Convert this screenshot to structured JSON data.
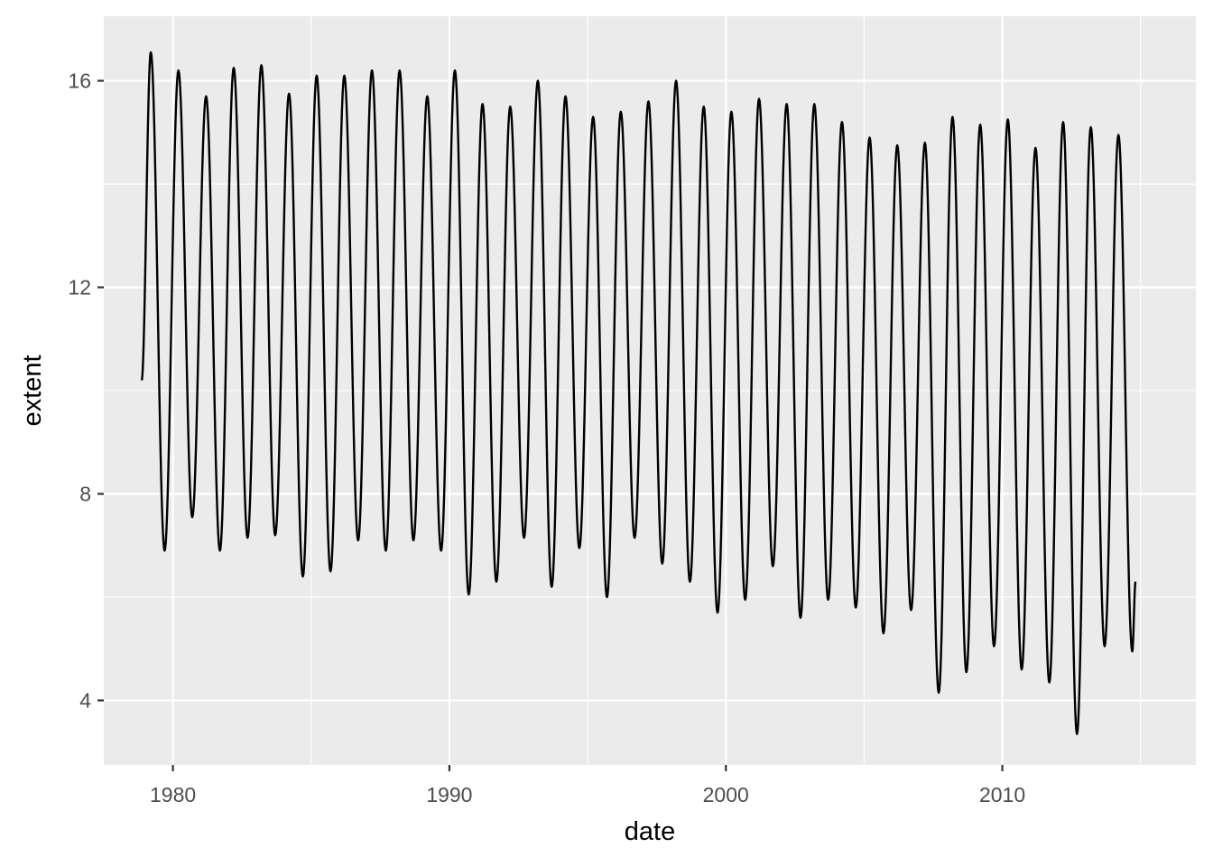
{
  "chart_data": {
    "type": "line",
    "title": "",
    "xlabel": "date",
    "ylabel": "extent",
    "xlim": [
      1977.5,
      2017.0
    ],
    "ylim": [
      2.75,
      17.25
    ],
    "x_ticks": [
      1980,
      1990,
      2000,
      2010
    ],
    "x_tick_labels": [
      "1980",
      "1990",
      "2000",
      "2010"
    ],
    "y_ticks": [
      4,
      8,
      12,
      16
    ],
    "y_tick_labels": [
      "4",
      "8",
      "12",
      "16"
    ],
    "grid": true,
    "legend": "none",
    "colors": {
      "panel": "#ebebeb",
      "grid": "#ffffff",
      "line": "#000000",
      "tick_text": "#4d4d4d"
    },
    "series": [
      {
        "values": [
          [
            1978.87,
            10.2
          ],
          [
            1979.2,
            16.55
          ],
          [
            1979.7,
            6.9
          ],
          [
            1980.2,
            16.2
          ],
          [
            1980.7,
            7.55
          ],
          [
            1981.2,
            15.7
          ],
          [
            1981.7,
            6.9
          ],
          [
            1982.2,
            16.25
          ],
          [
            1982.7,
            7.15
          ],
          [
            1983.2,
            16.3
          ],
          [
            1983.7,
            7.2
          ],
          [
            1984.2,
            15.75
          ],
          [
            1984.7,
            6.4
          ],
          [
            1985.2,
            16.1
          ],
          [
            1985.7,
            6.5
          ],
          [
            1986.2,
            16.1
          ],
          [
            1986.7,
            7.1
          ],
          [
            1987.2,
            16.2
          ],
          [
            1987.7,
            6.9
          ],
          [
            1988.2,
            16.2
          ],
          [
            1988.7,
            7.1
          ],
          [
            1989.2,
            15.7
          ],
          [
            1989.7,
            6.9
          ],
          [
            1990.2,
            16.2
          ],
          [
            1990.7,
            6.05
          ],
          [
            1991.2,
            15.55
          ],
          [
            1991.7,
            6.3
          ],
          [
            1992.2,
            15.5
          ],
          [
            1992.7,
            7.15
          ],
          [
            1993.2,
            16.0
          ],
          [
            1993.7,
            6.2
          ],
          [
            1994.2,
            15.7
          ],
          [
            1994.7,
            6.95
          ],
          [
            1995.2,
            15.3
          ],
          [
            1995.7,
            6.0
          ],
          [
            1996.2,
            15.4
          ],
          [
            1996.7,
            7.15
          ],
          [
            1997.2,
            15.6
          ],
          [
            1997.7,
            6.65
          ],
          [
            1998.2,
            16.0
          ],
          [
            1998.7,
            6.3
          ],
          [
            1999.2,
            15.5
          ],
          [
            1999.7,
            5.7
          ],
          [
            2000.2,
            15.4
          ],
          [
            2000.7,
            5.95
          ],
          [
            2001.2,
            15.65
          ],
          [
            2001.7,
            6.6
          ],
          [
            2002.2,
            15.55
          ],
          [
            2002.7,
            5.6
          ],
          [
            2003.2,
            15.55
          ],
          [
            2003.7,
            5.95
          ],
          [
            2004.2,
            15.2
          ],
          [
            2004.7,
            5.8
          ],
          [
            2005.2,
            14.9
          ],
          [
            2005.7,
            5.3
          ],
          [
            2006.2,
            14.75
          ],
          [
            2006.7,
            5.75
          ],
          [
            2007.2,
            14.8
          ],
          [
            2007.7,
            4.15
          ],
          [
            2008.2,
            15.3
          ],
          [
            2008.7,
            4.55
          ],
          [
            2009.2,
            15.15
          ],
          [
            2009.7,
            5.05
          ],
          [
            2010.2,
            15.25
          ],
          [
            2010.7,
            4.6
          ],
          [
            2011.2,
            14.7
          ],
          [
            2011.7,
            4.35
          ],
          [
            2012.2,
            15.2
          ],
          [
            2012.7,
            3.35
          ],
          [
            2013.2,
            15.1
          ],
          [
            2013.7,
            5.05
          ],
          [
            2014.2,
            14.95
          ],
          [
            2014.7,
            4.95
          ],
          [
            2014.82,
            6.3
          ]
        ]
      }
    ]
  }
}
